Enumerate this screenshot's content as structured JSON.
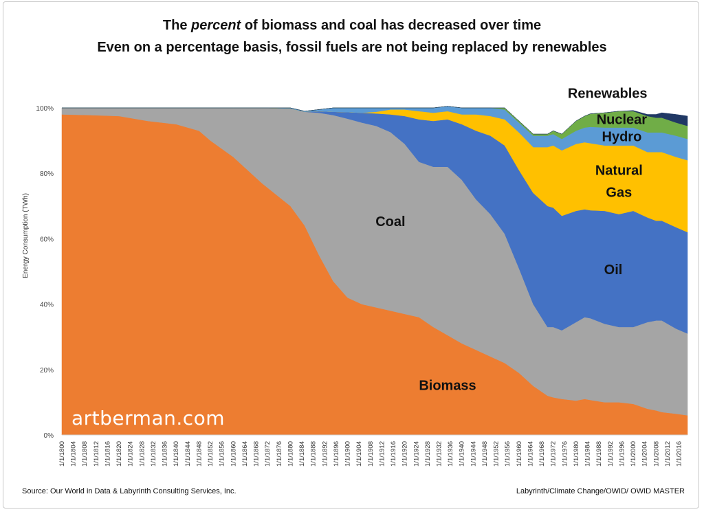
{
  "title": {
    "line1_pre": "The ",
    "line1_em": "percent",
    "line1_post": " of biomass and coal has decreased over time",
    "line2": "Even on a percentage basis, fossil fuels are not being replaced by renewables"
  },
  "source_left": "Source: Our World in Data & Labyrinth Consulting Services, Inc.",
  "source_right": "Labyrinth/Climate Change/OWID/ OWID MASTER",
  "watermark": "artberman.com",
  "chart_data": {
    "type": "area",
    "stacked": true,
    "normalized": true,
    "ylabel": "Energy Consumption (TWh)",
    "ylim": [
      0,
      100
    ],
    "yticks": [
      "0%",
      "20%",
      "40%",
      "60%",
      "80%",
      "100%"
    ],
    "x_tick_labels": [
      "1/1/1800",
      "1/1/1804",
      "1/1/1808",
      "1/1/1812",
      "1/1/1816",
      "1/1/1820",
      "1/1/1824",
      "1/1/1828",
      "1/1/1832",
      "1/1/1836",
      "1/1/1840",
      "1/1/1844",
      "1/1/1848",
      "1/1/1852",
      "1/1/1856",
      "1/1/1860",
      "1/1/1864",
      "1/1/1868",
      "1/1/1872",
      "1/1/1876",
      "1/1/1880",
      "1/1/1884",
      "1/1/1888",
      "1/1/1892",
      "1/1/1896",
      "1/1/1900",
      "1/1/1904",
      "1/1/1908",
      "1/1/1912",
      "1/1/1916",
      "1/1/1920",
      "1/1/1924",
      "1/1/1928",
      "1/1/1932",
      "1/1/1936",
      "1/1/1940",
      "1/1/1944",
      "1/1/1948",
      "1/1/1952",
      "1/1/1956",
      "1/1/1960",
      "1/1/1964",
      "1/1/1968",
      "1/1/1972",
      "1/1/1976",
      "1/1/1980",
      "1/1/1984",
      "1/1/1988",
      "1/1/1992",
      "1/1/1996",
      "1/1/2000",
      "1/1/2004",
      "1/1/2008",
      "1/1/2012",
      "1/1/2016"
    ],
    "x": [
      1800,
      1810,
      1820,
      1830,
      1840,
      1848,
      1852,
      1860,
      1870,
      1880,
      1885,
      1890,
      1895,
      1900,
      1905,
      1910,
      1915,
      1920,
      1925,
      1930,
      1935,
      1940,
      1945,
      1950,
      1955,
      1960,
      1965,
      1970,
      1972,
      1975,
      1980,
      1983,
      1985,
      1990,
      1995,
      2000,
      2005,
      2008,
      2010,
      2015,
      2019
    ],
    "series": [
      {
        "name": "Biomass",
        "color": "#ED7D31",
        "values": [
          98,
          97.8,
          97.5,
          96,
          95,
          93,
          90,
          85,
          77,
          70,
          64,
          55,
          47,
          42,
          40,
          39,
          38,
          37,
          36,
          33,
          30.5,
          28,
          26,
          24,
          22,
          19,
          15,
          12,
          11.5,
          11,
          10.5,
          11,
          10.7,
          10,
          10,
          9.5,
          8,
          7.5,
          7,
          6.5,
          6
        ]
      },
      {
        "name": "Coal",
        "color": "#A5A5A5",
        "values": [
          2,
          2.2,
          2.5,
          4,
          5,
          7,
          10,
          15,
          23,
          29.8,
          34.8,
          43.5,
          50.8,
          54.7,
          55.5,
          55.5,
          54.6,
          52,
          47.5,
          49,
          51.5,
          50,
          46,
          43.5,
          39.5,
          32,
          25,
          21,
          21.5,
          21,
          24,
          25,
          25,
          24,
          23,
          23.5,
          26.5,
          27.5,
          28,
          26,
          25
        ]
      },
      {
        "name": "Oil",
        "color": "#4472C4",
        "values": [
          0,
          0,
          0,
          0,
          0,
          0,
          0,
          0,
          0,
          0,
          0,
          0.5,
          1,
          2,
          3,
          3.8,
          5.4,
          8.5,
          13,
          14,
          14.5,
          17,
          21,
          24,
          27,
          30,
          34,
          37,
          36.5,
          35,
          34,
          33,
          33,
          34.5,
          34.5,
          35.5,
          32,
          30.5,
          30.5,
          31,
          31
        ]
      },
      {
        "name": "Natural Gas",
        "color": "#FFC000",
        "values": [
          0,
          0,
          0,
          0,
          0,
          0,
          0,
          0,
          0,
          0,
          0,
          0,
          0,
          0,
          0,
          0.5,
          1.5,
          2,
          2.5,
          2.5,
          2.5,
          3,
          5,
          6,
          8,
          11.5,
          14,
          18,
          19,
          20,
          20.5,
          20.5,
          20.5,
          20,
          21,
          20,
          20,
          21,
          21,
          21.5,
          22
        ]
      },
      {
        "name": "Hydro",
        "color": "#5B9BD5",
        "values": [
          0,
          0,
          0,
          0,
          0,
          0,
          0,
          0,
          0,
          0.2,
          0.2,
          0.5,
          1.2,
          1.3,
          1.5,
          1.2,
          0.5,
          0.5,
          1,
          1.5,
          1.5,
          2,
          2,
          2.5,
          3,
          3,
          3.5,
          3.5,
          3.5,
          3.5,
          4,
          4.5,
          5,
          5.5,
          5.5,
          5.5,
          6,
          6,
          6,
          6.5,
          6.5
        ]
      },
      {
        "name": "Nuclear",
        "color": "#70AD47",
        "values": [
          0,
          0,
          0,
          0,
          0,
          0,
          0,
          0,
          0,
          0,
          0,
          0,
          0,
          0,
          0,
          0,
          0,
          0,
          0,
          0,
          0,
          0,
          0,
          0,
          0.5,
          0.5,
          0.5,
          0.5,
          1,
          1.5,
          3,
          3.5,
          4,
          4.5,
          5,
          5,
          5,
          4.5,
          4.5,
          4,
          4
        ]
      },
      {
        "name": "Renewables",
        "color": "#203864",
        "values": [
          0,
          0,
          0,
          0,
          0,
          0,
          0,
          0,
          0,
          0,
          0,
          0,
          0,
          0,
          0,
          0,
          0,
          0,
          0,
          0,
          0,
          0,
          0,
          0,
          0,
          0,
          0,
          0,
          0,
          0,
          0,
          0,
          0,
          0,
          0,
          0.2,
          0.5,
          1,
          1.5,
          2.5,
          3
        ]
      }
    ],
    "area_labels": [
      {
        "series": "Biomass",
        "text": "Biomass",
        "color": "#111111"
      },
      {
        "series": "Coal",
        "text": "Coal",
        "color": "#111111"
      },
      {
        "series": "Oil",
        "text": "Oil",
        "color": "#111111"
      },
      {
        "series": "Natural Gas",
        "text": "Natural",
        "color": "#111111"
      },
      {
        "series": "Natural Gas",
        "text": "Gas",
        "color": "#111111"
      },
      {
        "series": "Hydro",
        "text": "Hydro",
        "color": "#111111"
      },
      {
        "series": "Nuclear",
        "text": "Nuclear",
        "color": "#111111"
      },
      {
        "series": "Renewables",
        "text": "Renewables",
        "color": "#111111"
      }
    ]
  }
}
